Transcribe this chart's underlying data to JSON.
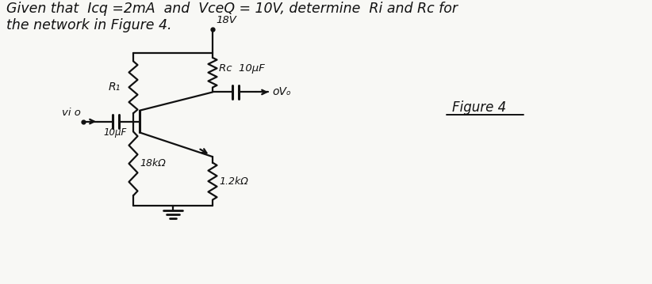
{
  "background_color": "#f8f8f5",
  "title_line1": "Given that  Icq =2mA  and  VceQ = 10V, determine  Ri and Rc for",
  "title_line2": "the network in Figure 4.",
  "figure_label": "Figure 4",
  "vcc_label": "18V",
  "rc_label": "Rc  10μF",
  "r1_label": "R₁",
  "vi_label": "vi o",
  "cap_vi_label": "10μF",
  "r18k_label": "18kΩ",
  "r12k_label": "1.2kΩ",
  "vo_label": "oVₒ",
  "line_color": "#111111",
  "text_color": "#111111",
  "font_size_title": 12.5,
  "font_size_circuit": 9.5
}
